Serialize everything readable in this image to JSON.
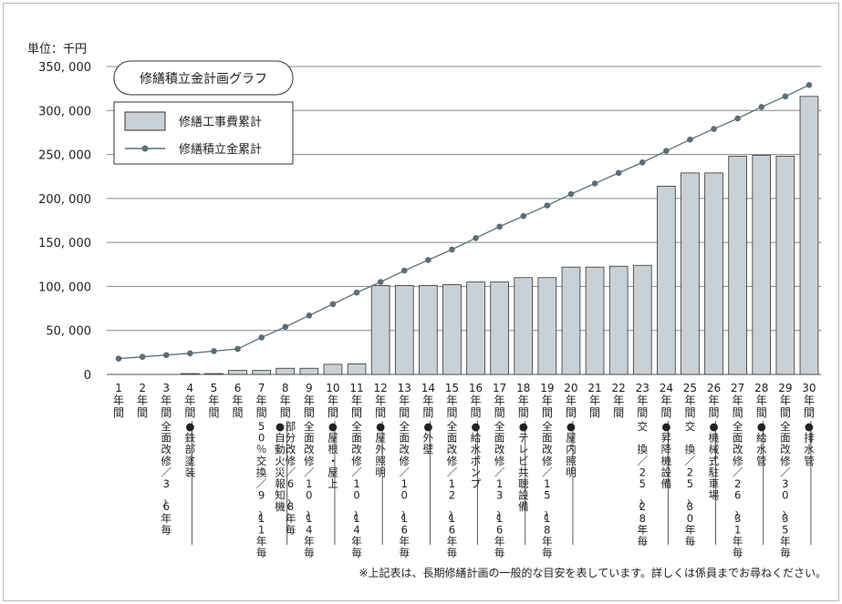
{
  "chart_data": {
    "type": "bar",
    "title": "修繕積立金計画グラフ",
    "unit_label": "単位：千円",
    "y_ticks": [
      "350, 000",
      "300, 000",
      "250, 000",
      "200, 000",
      "150, 000",
      "100, 000",
      "50, 000",
      "0"
    ],
    "ylim": [
      0,
      350000
    ],
    "categories": [
      "1年間",
      "2年間",
      "3年間",
      "4年間",
      "5年間",
      "6年間",
      "7年間",
      "8年間",
      "9年間",
      "10年間",
      "11年間",
      "12年間",
      "13年間",
      "14年間",
      "15年間",
      "16年間",
      "17年間",
      "18年間",
      "19年間",
      "20年間",
      "21年間",
      "22年間",
      "23年間",
      "24年間",
      "25年間",
      "26年間",
      "27年間",
      "28年間",
      "29年間",
      "30年間"
    ],
    "series": [
      {
        "name": "修繕工事費累計",
        "kind": "bar",
        "color": "#c9d1d6",
        "values": [
          0,
          0,
          0,
          1000,
          1000,
          4500,
          4500,
          7000,
          7000,
          11500,
          12000,
          101000,
          101000,
          101000,
          102000,
          105000,
          105000,
          110000,
          110000,
          122000,
          122000,
          123000,
          124000,
          214000,
          229000,
          229000,
          248000,
          249000,
          248000,
          316000
        ]
      },
      {
        "name": "修繕積立金累計",
        "kind": "line",
        "color": "#5a6e78",
        "values": [
          18000,
          20000,
          22000,
          24000,
          26500,
          29000,
          42000,
          54000,
          67000,
          80000,
          93000,
          105000,
          118000,
          130000,
          142000,
          155000,
          168000,
          180000,
          192000,
          205000,
          217000,
          229000,
          241000,
          254000,
          267000,
          279000,
          291000,
          304000,
          316000,
          329000
        ]
      }
    ],
    "annotations": [
      {
        "at": 3,
        "lines": [
          "全面改修／3〜6年毎"
        ]
      },
      {
        "at": 4,
        "lines": [
          "●鉄部塗装"
        ]
      },
      {
        "at": 7,
        "lines": [
          "50％交換／9〜11年毎"
        ]
      },
      {
        "at": 8,
        "lines": [
          "●自動火災報知機",
          "部分改修／6〜8年毎"
        ]
      },
      {
        "at": 9,
        "lines": [
          "全面改修／10〜14年毎"
        ]
      },
      {
        "at": 10,
        "lines": [
          "●屋根・屋上"
        ]
      },
      {
        "at": 11,
        "lines": [
          "全面改修／10〜14年毎"
        ]
      },
      {
        "at": 12,
        "lines": [
          "●屋外照明"
        ]
      },
      {
        "at": 13,
        "lines": [
          "全面改修／10〜16年毎"
        ]
      },
      {
        "at": 14,
        "lines": [
          "●外壁"
        ]
      },
      {
        "at": 15,
        "lines": [
          "全面改修／12〜16年毎"
        ]
      },
      {
        "at": 16,
        "lines": [
          "●給水ポンプ"
        ]
      },
      {
        "at": 17,
        "lines": [
          "全面改修／13〜16年毎"
        ]
      },
      {
        "at": 18,
        "lines": [
          "●テレビ共聴設備"
        ]
      },
      {
        "at": 19,
        "lines": [
          "全面改修／15〜18年毎"
        ]
      },
      {
        "at": 20,
        "lines": [
          "●屋内照明"
        ]
      },
      {
        "at": 23,
        "lines": [
          "交　換／25〜28年毎"
        ]
      },
      {
        "at": 24,
        "lines": [
          "●昇降機設備"
        ]
      },
      {
        "at": 25,
        "lines": [
          "交　換／25〜30年毎"
        ]
      },
      {
        "at": 26,
        "lines": [
          "●機械式駐車場"
        ]
      },
      {
        "at": 27,
        "lines": [
          "全面改修／26〜31年毎"
        ]
      },
      {
        "at": 28,
        "lines": [
          "●給水管"
        ]
      },
      {
        "at": 29,
        "lines": [
          "全面改修／30〜35年毎"
        ]
      },
      {
        "at": 30,
        "lines": [
          "●排水管"
        ]
      }
    ],
    "grid": true,
    "legend_position": "top-left"
  },
  "footnote": "※上記表は、長期修繕計画の一般的な目安を表しています。詳しくは係員までお尋ねください。"
}
